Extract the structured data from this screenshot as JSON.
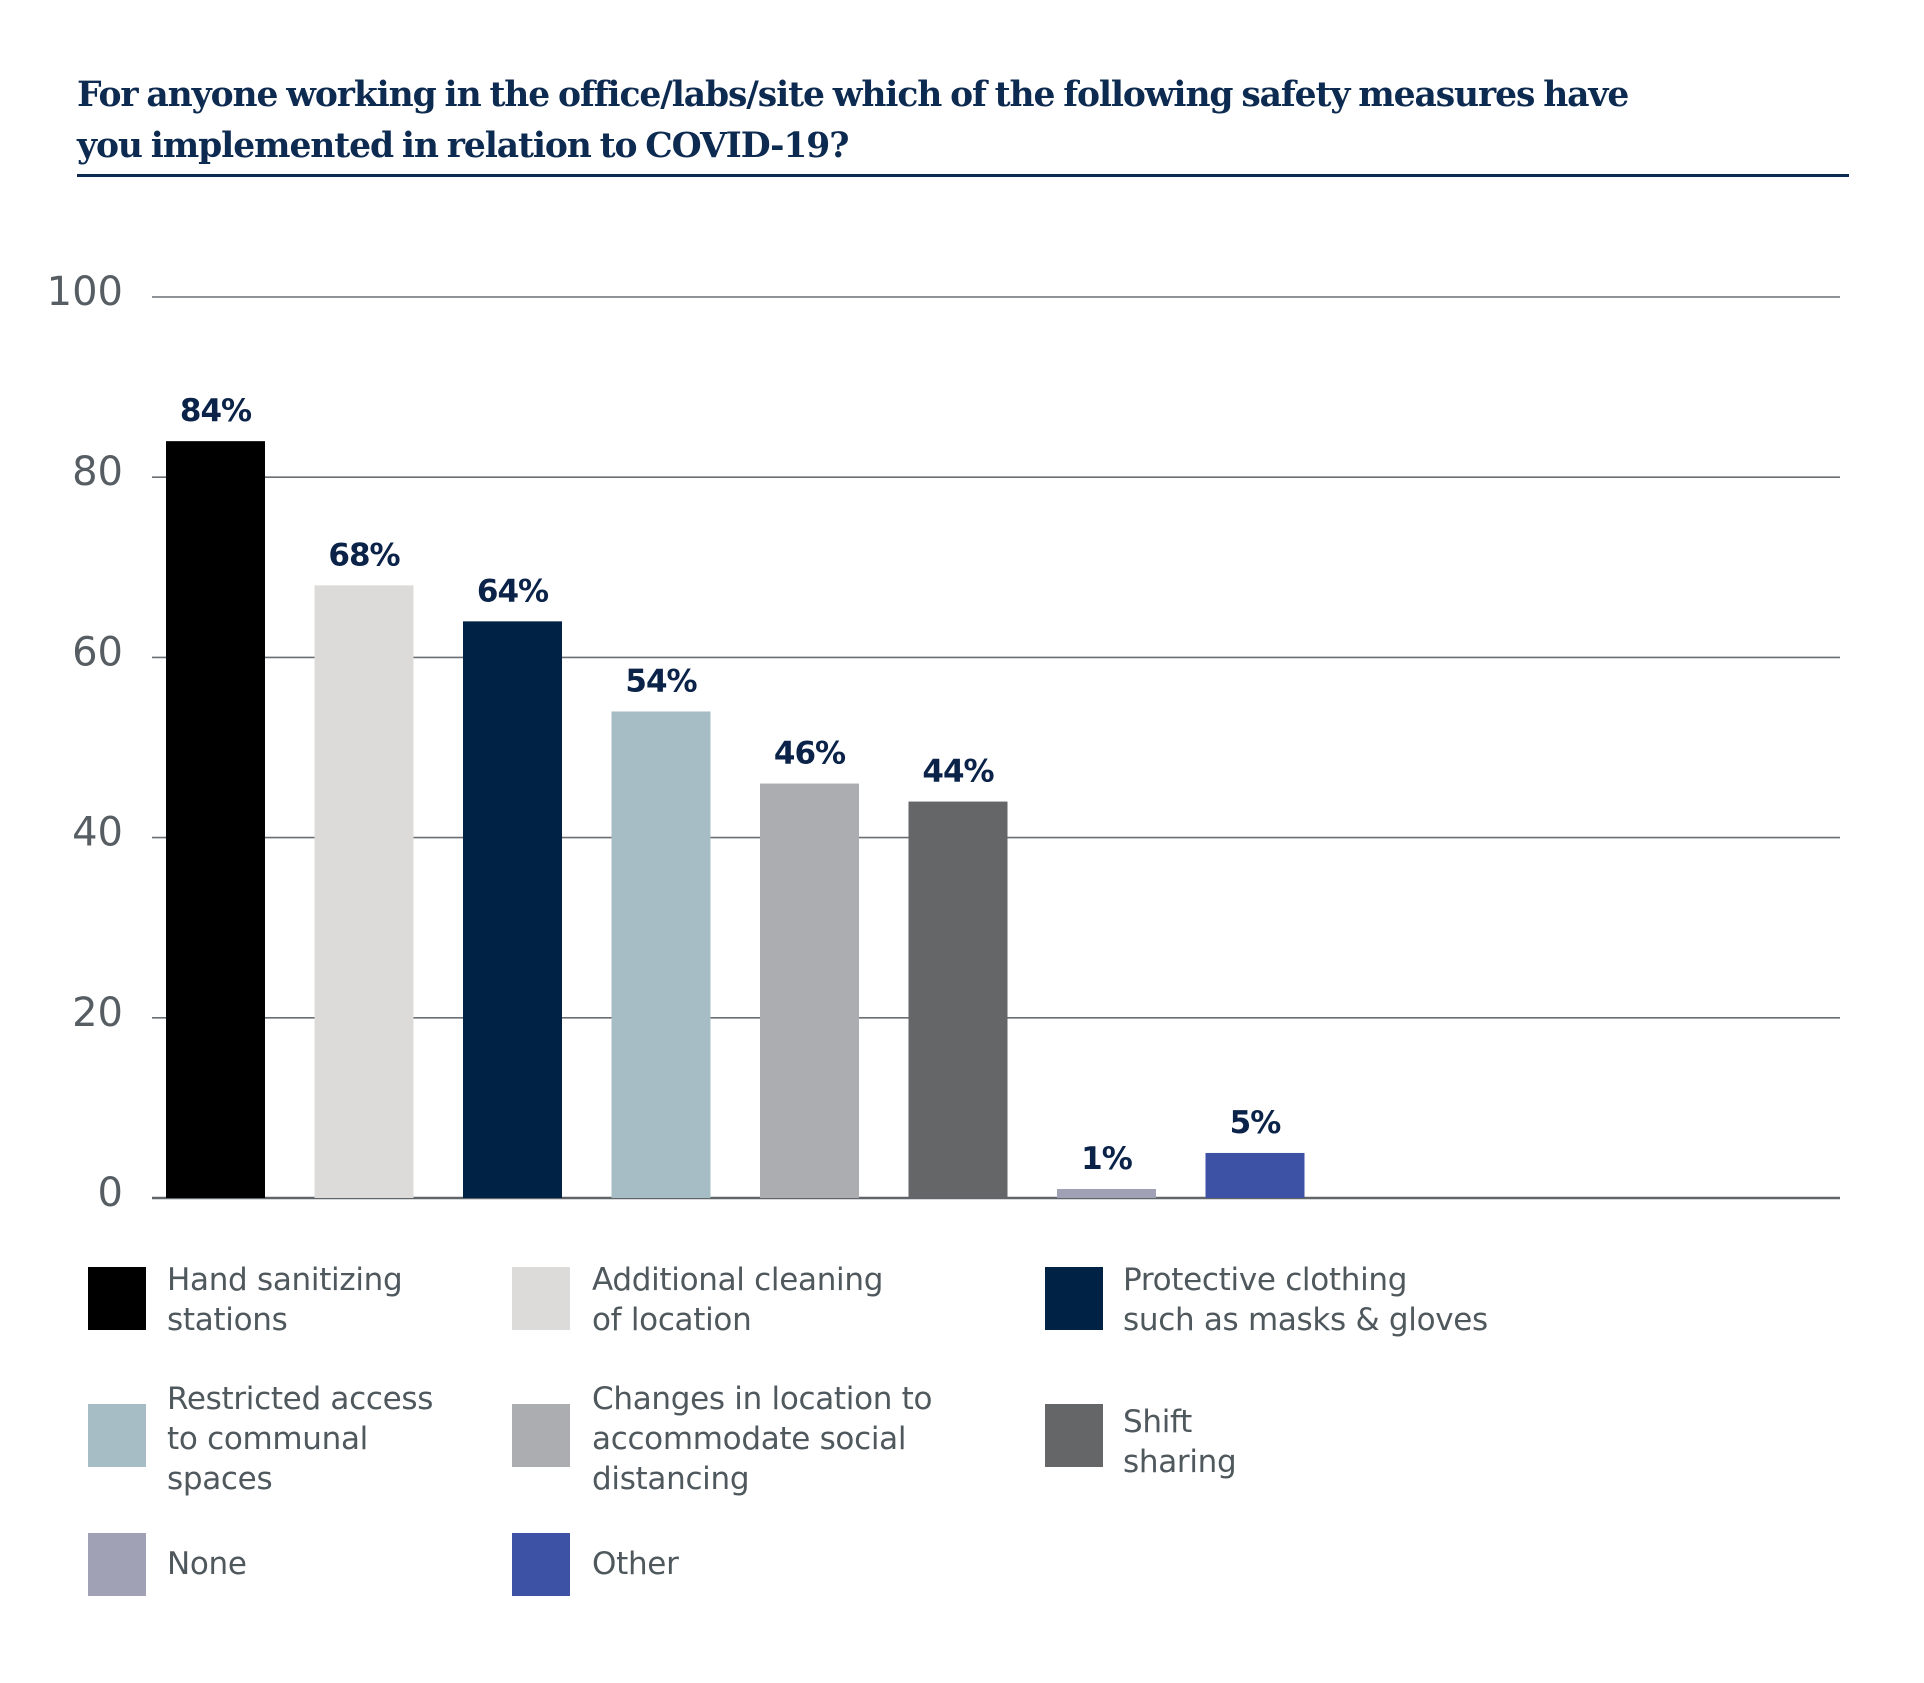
{
  "chart_data": {
    "type": "bar",
    "title": "For anyone working in the office/labs/site which of the following safety measures have you implemented in relation to COVID-19?",
    "title_lines": [
      "For anyone working in the office/labs/site which of the following safety measures have",
      "you implemented in relation to COVID-19?"
    ],
    "xlabel": "",
    "ylabel": "",
    "ylim": [
      0,
      100
    ],
    "yticks": [
      0,
      20,
      40,
      60,
      80,
      100
    ],
    "grid": true,
    "legend_position": "bottom",
    "categories": [
      "Hand sanitizing stations",
      "Additional cleaning of location",
      "Protective clothing such as masks & gloves",
      "Restricted access to communal spaces",
      "Changes in location to accommodate social distancing",
      "Shift sharing",
      "None",
      "Other"
    ],
    "values": [
      84,
      68,
      64,
      54,
      46,
      44,
      1,
      5
    ],
    "data_labels": [
      "84%",
      "68%",
      "64%",
      "54%",
      "46%",
      "44%",
      "1%",
      "5%"
    ],
    "colors": [
      "#000000",
      "#dcdbda",
      "#002244",
      "#a7bdc5",
      "#acadb0",
      "#656668",
      "#a0a1b5",
      "#3d52a4"
    ],
    "legend": [
      {
        "label": "Hand sanitizing\nstations",
        "color": "#000000"
      },
      {
        "label": "Additional cleaning\nof location",
        "color": "#dcdbda"
      },
      {
        "label": "Protective clothing\nsuch as masks & gloves",
        "color": "#002244"
      },
      {
        "label": "Restricted access\nto communal\nspaces",
        "color": "#a7bdc5"
      },
      {
        "label": "Changes in location to\naccommodate social\ndistancing",
        "color": "#acadb0"
      },
      {
        "label": "Shift\nsharing",
        "color": "#656668"
      },
      {
        "label": "None",
        "color": "#a0a1b5"
      },
      {
        "label": "Other",
        "color": "#3d52a4"
      }
    ]
  }
}
